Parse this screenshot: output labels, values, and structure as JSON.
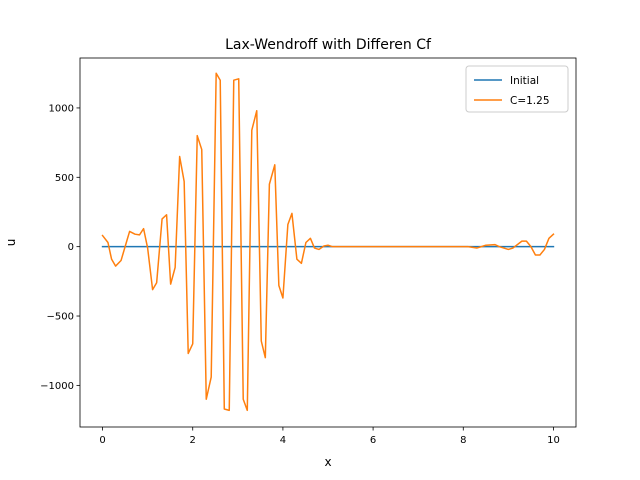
{
  "chart_data": {
    "type": "line",
    "title": "Lax-Wendroff with Differen Cf",
    "xlabel": "x",
    "ylabel": "u",
    "xlim": [
      -0.5,
      10.5
    ],
    "ylim": [
      -1300,
      1360
    ],
    "xticks": [
      0,
      2,
      4,
      6,
      8,
      10
    ],
    "xtick_labels": [
      "0",
      "2",
      "4",
      "6",
      "8",
      "10"
    ],
    "yticks": [
      -1000,
      -500,
      0,
      500,
      1000
    ],
    "ytick_labels": [
      "−1000",
      "−500",
      "0",
      "500",
      "1000"
    ],
    "grid": false,
    "legend": "top-right",
    "series": [
      {
        "name": "Initial",
        "color": "#1f77b4",
        "x": [
          0,
          10
        ],
        "y": [
          0,
          0
        ]
      },
      {
        "name": "C=1.25",
        "color": "#ff7f0e",
        "x": [
          0,
          0.12,
          0.2,
          0.29,
          0.41,
          0.6,
          0.72,
          0.82,
          0.91,
          1.0,
          1.11,
          1.2,
          1.32,
          1.42,
          1.51,
          1.61,
          1.71,
          1.81,
          1.9,
          2.0,
          2.1,
          2.2,
          2.3,
          2.41,
          2.52,
          2.61,
          2.7,
          2.81,
          2.91,
          3.02,
          3.12,
          3.21,
          3.31,
          3.42,
          3.52,
          3.61,
          3.7,
          3.82,
          3.91,
          4.0,
          4.11,
          4.2,
          4.31,
          4.41,
          4.51,
          4.61,
          4.7,
          4.8,
          4.91,
          5.0,
          5.1,
          5.3,
          5.6,
          6.0,
          6.5,
          7.0,
          7.5,
          7.9,
          8.1,
          8.3,
          8.5,
          8.7,
          8.8,
          9.0,
          9.1,
          9.3,
          9.4,
          9.5,
          9.6,
          9.7,
          9.8,
          9.9,
          10.0
        ],
        "y": [
          80,
          30,
          -90,
          -140,
          -100,
          110,
          90,
          85,
          130,
          -10,
          -310,
          -260,
          200,
          230,
          -270,
          -150,
          650,
          470,
          -770,
          -700,
          800,
          700,
          -1100,
          -940,
          1250,
          1200,
          -1170,
          -1180,
          1200,
          1210,
          -1100,
          -1180,
          840,
          980,
          -680,
          -800,
          450,
          590,
          -280,
          -370,
          160,
          240,
          -90,
          -120,
          30,
          60,
          -10,
          -20,
          5,
          10,
          0,
          0,
          0,
          0,
          0,
          0,
          0,
          0,
          0,
          -10,
          10,
          15,
          0,
          -20,
          -10,
          40,
          40,
          0,
          -60,
          -60,
          -20,
          60,
          90
        ]
      }
    ]
  }
}
